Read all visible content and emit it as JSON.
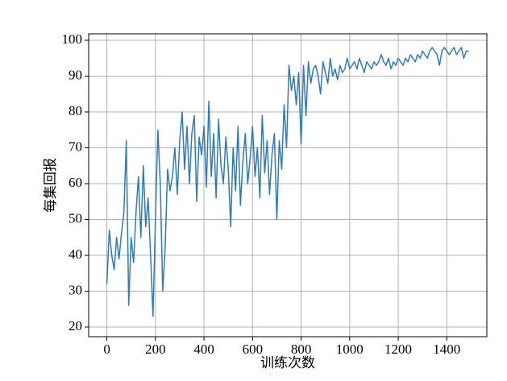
{
  "chart_data": {
    "type": "line",
    "xlabel": "训练次数",
    "ylabel": "每集回报",
    "x": [
      0,
      10,
      20,
      30,
      40,
      50,
      60,
      70,
      80,
      90,
      100,
      110,
      120,
      130,
      140,
      150,
      160,
      170,
      180,
      190,
      200,
      210,
      220,
      230,
      240,
      250,
      260,
      270,
      280,
      290,
      300,
      310,
      320,
      330,
      340,
      350,
      360,
      370,
      380,
      390,
      400,
      410,
      420,
      430,
      440,
      450,
      460,
      470,
      480,
      490,
      500,
      510,
      520,
      530,
      540,
      550,
      560,
      570,
      580,
      590,
      600,
      610,
      620,
      630,
      640,
      650,
      660,
      670,
      680,
      690,
      700,
      710,
      720,
      730,
      740,
      750,
      760,
      770,
      780,
      790,
      800,
      810,
      820,
      830,
      840,
      850,
      860,
      870,
      880,
      890,
      900,
      910,
      920,
      930,
      940,
      950,
      960,
      970,
      980,
      990,
      1000,
      1010,
      1020,
      1030,
      1040,
      1050,
      1060,
      1070,
      1080,
      1090,
      1100,
      1110,
      1120,
      1130,
      1140,
      1150,
      1160,
      1170,
      1180,
      1190,
      1200,
      1210,
      1220,
      1230,
      1240,
      1250,
      1260,
      1270,
      1280,
      1290,
      1300,
      1310,
      1320,
      1330,
      1340,
      1350,
      1360,
      1370,
      1380,
      1390,
      1400,
      1410,
      1420,
      1430,
      1440,
      1450,
      1460,
      1470,
      1480,
      1490
    ],
    "series": [
      {
        "name": "每集回报",
        "color": "#2f7bb3",
        "values": [
          32,
          47,
          40,
          36,
          45,
          39,
          46,
          52,
          72,
          26,
          45,
          38,
          52,
          62,
          45,
          65,
          48,
          56,
          40,
          23,
          50,
          75,
          60,
          30,
          42,
          64,
          58,
          62,
          70,
          57,
          72,
          80,
          64,
          76,
          60,
          74,
          79,
          55,
          73,
          68,
          76,
          59,
          83,
          62,
          74,
          56,
          78,
          65,
          60,
          73,
          64,
          48,
          70,
          58,
          76,
          54,
          66,
          74,
          60,
          67,
          76,
          62,
          70,
          56,
          79,
          63,
          72,
          57,
          68,
          74,
          50,
          72,
          64,
          82,
          70,
          93,
          86,
          90,
          82,
          91,
          71,
          93,
          79,
          94,
          88,
          92,
          93,
          90,
          85,
          94,
          91,
          88,
          95,
          90,
          92,
          89,
          93,
          91,
          92,
          95,
          92,
          93,
          94,
          92,
          95,
          93,
          91,
          94,
          93,
          92,
          94,
          93,
          94,
          96,
          94,
          93,
          95,
          92,
          94,
          93,
          95,
          94,
          93,
          95,
          94,
          96,
          95,
          94,
          96,
          95,
          97,
          96,
          95,
          97,
          98,
          97,
          96,
          93,
          97,
          98,
          97,
          96,
          97,
          98,
          96,
          97,
          98,
          95,
          97,
          97
        ]
      }
    ],
    "xlim": [
      -75,
      1565
    ],
    "ylim": [
      17.3,
      101.8
    ],
    "xticks": [
      0,
      200,
      400,
      600,
      800,
      1000,
      1200,
      1400
    ],
    "yticks": [
      20,
      30,
      40,
      50,
      60,
      70,
      80,
      90,
      100
    ],
    "grid": true
  }
}
